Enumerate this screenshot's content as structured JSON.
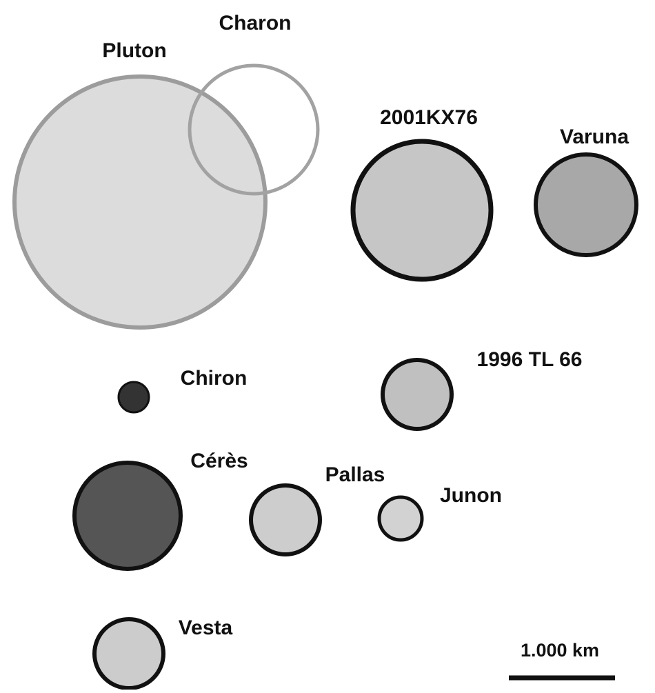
{
  "nodes": [
    {
      "label": "Pluton"
    },
    {
      "label": "Charon"
    },
    {
      "label": "2001KX76"
    },
    {
      "label": "Varuna"
    },
    {
      "label": "Chiron"
    },
    {
      "label": "1996 TL 66"
    },
    {
      "label": "Cérès"
    },
    {
      "label": "Pallas"
    },
    {
      "label": "Junon"
    },
    {
      "label": "Vesta"
    }
  ],
  "scale": {
    "label": "1.000 km"
  }
}
